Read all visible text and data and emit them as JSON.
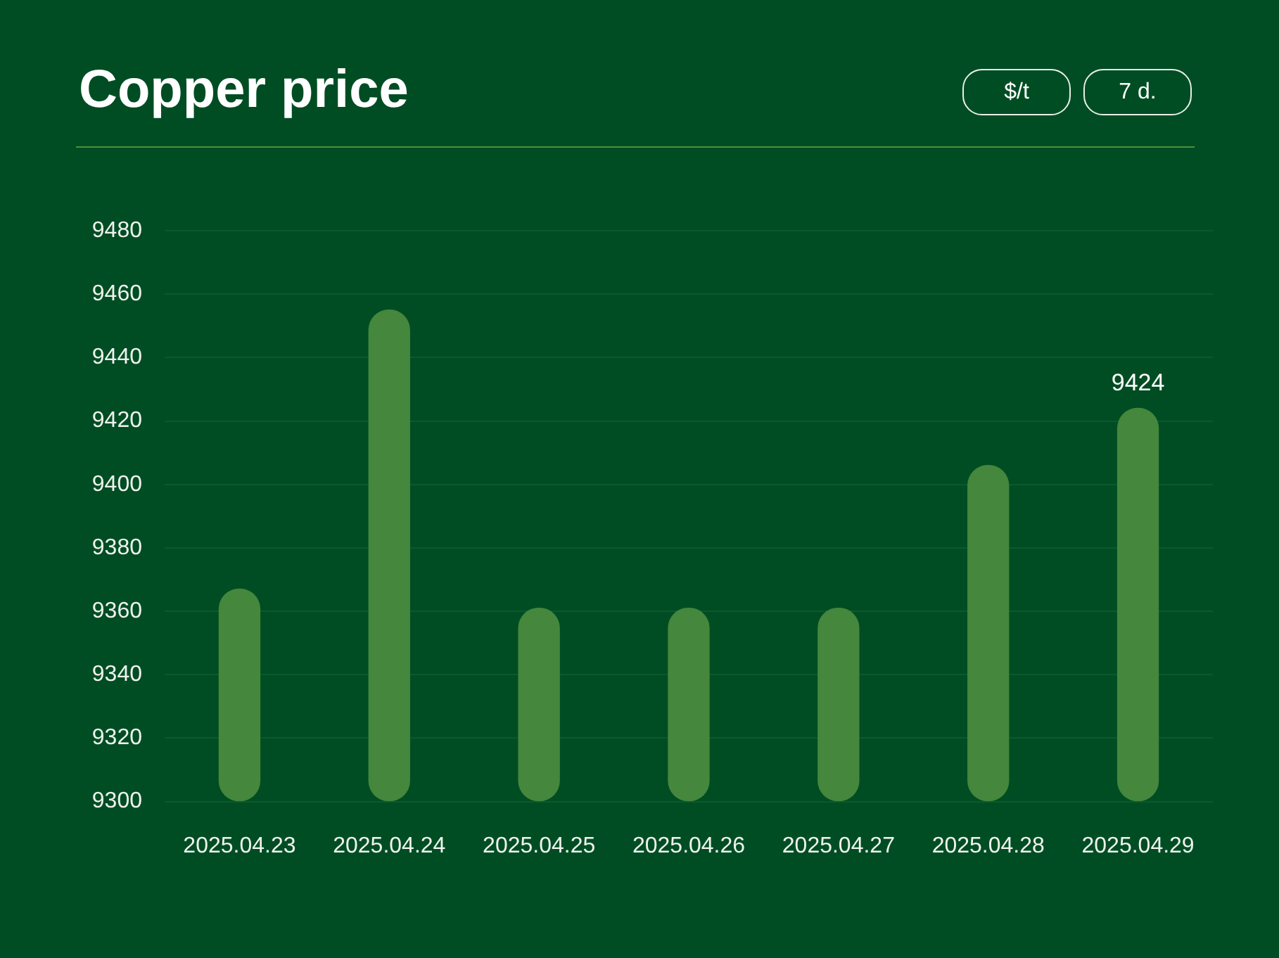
{
  "chart_data": {
    "type": "bar",
    "title": "Copper price",
    "annotations": [
      "$/t",
      "7 d."
    ],
    "categories": [
      "2025.04.23",
      "2025.04.24",
      "2025.04.25",
      "2025.04.26",
      "2025.04.27",
      "2025.04.28",
      "2025.04.29"
    ],
    "values": [
      9367,
      9455,
      9361,
      9361,
      9361,
      9406,
      9424
    ],
    "value_labels": [
      null,
      null,
      null,
      null,
      null,
      null,
      "9424"
    ],
    "color": "#44873d",
    "ylim": [
      9300,
      9480
    ],
    "yticks": [
      9300,
      9320,
      9340,
      9360,
      9380,
      9400,
      9420,
      9440,
      9460,
      9480
    ],
    "grid": "y"
  }
}
